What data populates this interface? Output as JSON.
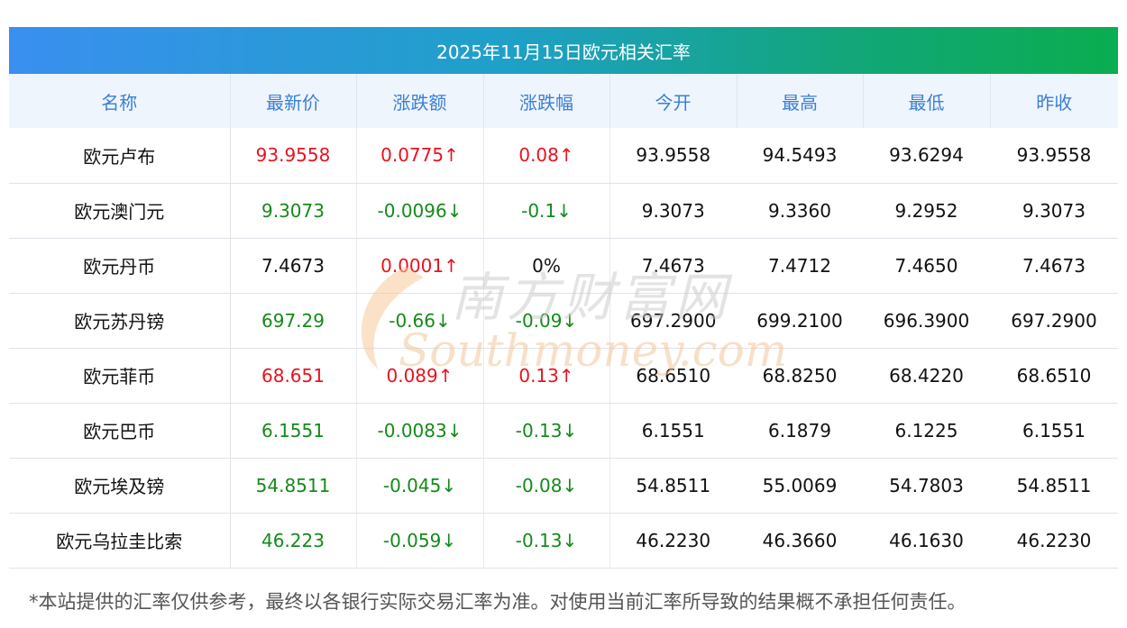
{
  "banner": {
    "title": "2025年11月15日欧元相关汇率"
  },
  "table": {
    "headers": [
      "名称",
      "最新价",
      "涨跌额",
      "涨跌幅",
      "今开",
      "最高",
      "最低",
      "昨收"
    ],
    "rows": [
      {
        "name": "欧元卢布",
        "rate": "93.9558",
        "change": "0.0775↑",
        "pct": "0.08↑",
        "open": "93.9558",
        "high": "94.5493",
        "low": "93.6294",
        "prev": "93.9558",
        "trend": "up"
      },
      {
        "name": "欧元澳门元",
        "rate": "9.3073",
        "change": "-0.0096↓",
        "pct": "-0.1↓",
        "open": "9.3073",
        "high": "9.3360",
        "low": "9.2952",
        "prev": "9.3073",
        "trend": "down"
      },
      {
        "name": "欧元丹币",
        "rate": "7.4673",
        "change": "0.0001↑",
        "pct": "0%",
        "open": "7.4673",
        "high": "7.4712",
        "low": "7.4650",
        "prev": "7.4673",
        "trend": "flat-up"
      },
      {
        "name": "欧元苏丹镑",
        "rate": "697.29",
        "change": "-0.66↓",
        "pct": "-0.09↓",
        "open": "697.2900",
        "high": "699.2100",
        "low": "696.3900",
        "prev": "697.2900",
        "trend": "down"
      },
      {
        "name": "欧元菲币",
        "rate": "68.651",
        "change": "0.089↑",
        "pct": "0.13↑",
        "open": "68.6510",
        "high": "68.8250",
        "low": "68.4220",
        "prev": "68.6510",
        "trend": "up"
      },
      {
        "name": "欧元巴币",
        "rate": "6.1551",
        "change": "-0.0083↓",
        "pct": "-0.13↓",
        "open": "6.1551",
        "high": "6.1879",
        "low": "6.1225",
        "prev": "6.1551",
        "trend": "down"
      },
      {
        "name": "欧元埃及镑",
        "rate": "54.8511",
        "change": "-0.045↓",
        "pct": "-0.08↓",
        "open": "54.8511",
        "high": "55.0069",
        "low": "54.7803",
        "prev": "54.8511",
        "trend": "down"
      },
      {
        "name": "欧元乌拉圭比索",
        "rate": "46.223",
        "change": "-0.059↓",
        "pct": "-0.13↓",
        "open": "46.2230",
        "high": "46.3660",
        "low": "46.1630",
        "prev": "46.2230",
        "trend": "down"
      }
    ]
  },
  "watermark": {
    "cn": "南方财富网",
    "en": "Southmoney.com"
  },
  "footer": {
    "note": "*本站提供的汇率仅供参考，最终以各银行实际交易汇率为准。对使用当前汇率所导致的结果概不承担任何责任。"
  },
  "colors": {
    "up": "#e8131f",
    "down": "#148a1a",
    "header_text": "#3a7fd5"
  }
}
